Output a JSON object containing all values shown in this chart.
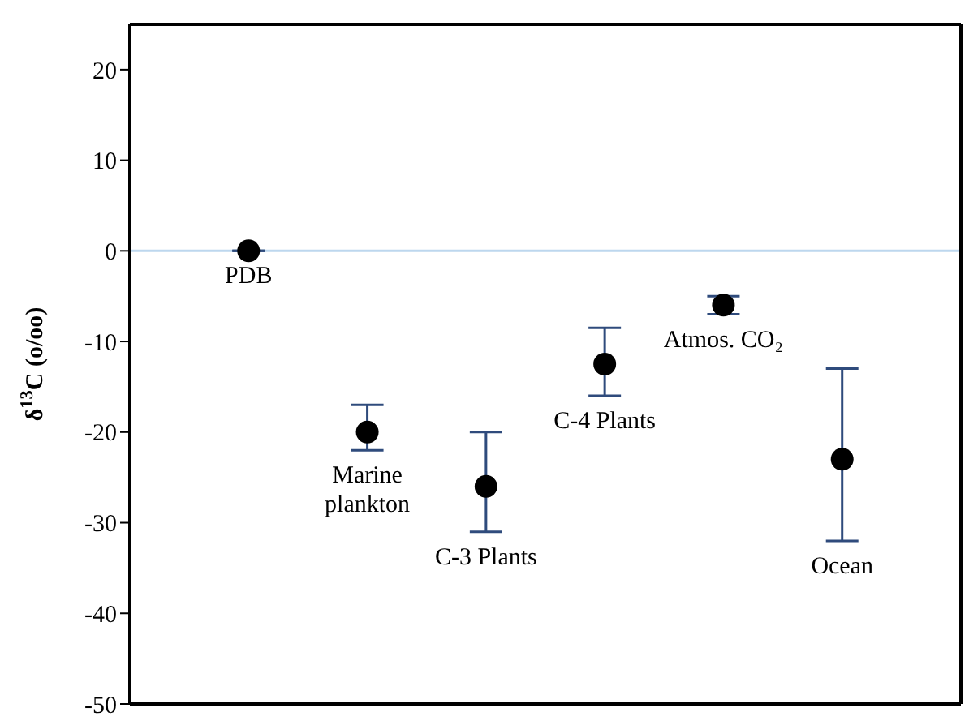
{
  "chart_data": {
    "type": "scatter",
    "ylabel": "δ$^{13}$C (o/oo)",
    "categories": [
      null,
      null,
      null,
      null,
      null,
      null
    ],
    "values": [
      0,
      -20,
      -26,
      -12.5,
      -6,
      -23
    ],
    "color": "#000000",
    "errors": [
      null,
      [
        -22,
        -17
      ],
      [
        -31,
        -20
      ],
      [
        -16,
        -8.5
      ],
      [
        -7,
        -5
      ],
      [
        -32,
        -13
      ]
    ],
    "ylim": [
      -50,
      25
    ],
    "yticks": [
      -50,
      -40,
      -30,
      -20,
      -10,
      0,
      10,
      20
    ],
    "ref_lines": [
      {
        "axis": "y",
        "value": 0,
        "color": "#bdd7ee"
      }
    ],
    "marker": "circle",
    "legend": false,
    "tick_labels": "y",
    "annotations": [
      "PDB",
      "Marine\nplankton",
      "C-3 Plants",
      "C-4 Plants",
      "Atmos. CO₂",
      "Ocean"
    ]
  }
}
